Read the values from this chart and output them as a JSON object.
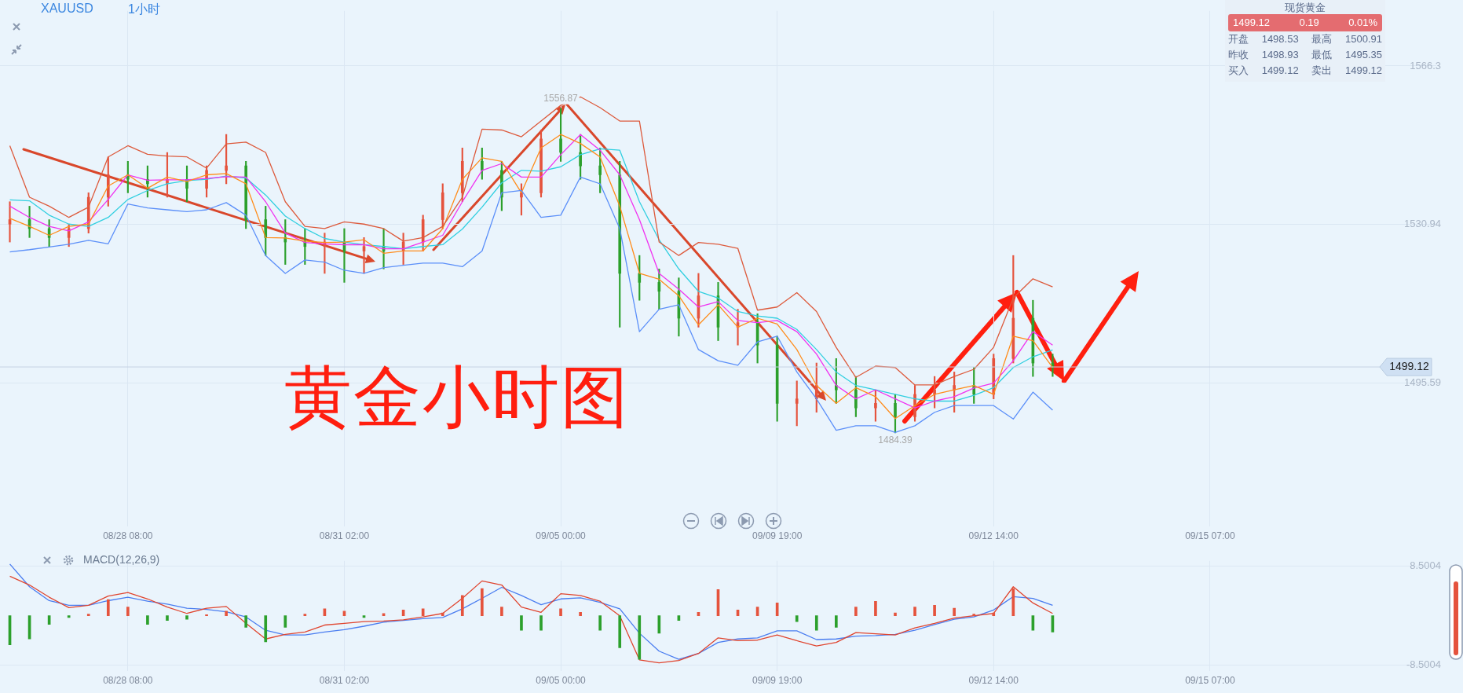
{
  "chart_data": [
    {
      "type": "candlestick",
      "title": "XAUUSD",
      "subtitle": "1小时",
      "categories": [
        null,
        null,
        null,
        null,
        null,
        null,
        "08/28 08:00",
        null,
        null,
        null,
        null,
        null,
        null,
        null,
        null,
        null,
        null,
        "08/31 02:00",
        null,
        null,
        null,
        null,
        null,
        null,
        null,
        null,
        null,
        null,
        "09/05 00:00",
        null,
        null,
        null,
        null,
        null,
        null,
        null,
        null,
        null,
        null,
        "09/09 19:00",
        null,
        null,
        null,
        null,
        null,
        null,
        null,
        null,
        null,
        null,
        "09/12 14:00",
        null,
        null,
        null,
        null,
        null,
        null,
        null,
        null,
        null,
        null,
        "09/15 07:00",
        null,
        null,
        null,
        null,
        null,
        null,
        null,
        null,
        null,
        null,
        null
      ],
      "ohlc": [
        [
          1531,
          1536,
          1527,
          1532
        ],
        [
          1532,
          1535,
          1528,
          1530
        ],
        [
          1530,
          1532,
          1526,
          1528
        ],
        [
          1528,
          1531,
          1526,
          1530
        ],
        [
          1530,
          1538,
          1529,
          1537
        ],
        [
          1537,
          1546,
          1535,
          1542
        ],
        [
          1542,
          1545,
          1538,
          1541
        ],
        [
          1541,
          1544,
          1537,
          1540
        ],
        [
          1540,
          1547,
          1537,
          1541
        ],
        [
          1541,
          1544,
          1536,
          1539
        ],
        [
          1539,
          1544,
          1537,
          1543
        ],
        [
          1543,
          1551,
          1540,
          1544
        ],
        [
          1544,
          1545,
          1530,
          1532
        ],
        [
          1532,
          1535,
          1524,
          1528
        ],
        [
          1528,
          1532,
          1522,
          1527
        ],
        [
          1527,
          1530,
          1522,
          1526
        ],
        [
          1526,
          1529,
          1520,
          1527
        ],
        [
          1527,
          1530,
          1518,
          1525
        ],
        [
          1525,
          1528,
          1520,
          1526
        ],
        [
          1526,
          1530,
          1521,
          1525
        ],
        [
          1525,
          1529,
          1522,
          1527
        ],
        [
          1527,
          1533,
          1525,
          1532
        ],
        [
          1532,
          1540,
          1530,
          1538
        ],
        [
          1538,
          1548,
          1536,
          1545
        ],
        [
          1545,
          1548,
          1541,
          1543
        ],
        [
          1543,
          1545,
          1534,
          1537
        ],
        [
          1537,
          1540,
          1533,
          1538
        ],
        [
          1538,
          1552,
          1537,
          1550
        ],
        [
          1550,
          1556.87,
          1545,
          1547
        ],
        [
          1547,
          1551,
          1541,
          1544
        ],
        [
          1544,
          1548,
          1538,
          1542
        ],
        [
          1542,
          1545,
          1508,
          1520
        ],
        [
          1520,
          1524,
          1514,
          1518
        ],
        [
          1518,
          1521,
          1512,
          1516
        ],
        [
          1516,
          1519,
          1506,
          1510
        ],
        [
          1510,
          1520,
          1508,
          1515
        ],
        [
          1515,
          1518,
          1505,
          1508
        ],
        [
          1508,
          1512,
          1504,
          1509
        ],
        [
          1509,
          1511,
          1500,
          1504
        ],
        [
          1504,
          1506,
          1487,
          1491
        ],
        [
          1491,
          1496,
          1486,
          1492
        ],
        [
          1492,
          1500,
          1489,
          1495
        ],
        [
          1495,
          1501,
          1491,
          1494
        ],
        [
          1494,
          1497,
          1488,
          1490
        ],
        [
          1490,
          1494,
          1487,
          1491
        ],
        [
          1491,
          1493,
          1484.39,
          1488
        ],
        [
          1488,
          1495,
          1487,
          1493
        ],
        [
          1493,
          1497,
          1490,
          1494
        ],
        [
          1494,
          1498,
          1489,
          1495
        ],
        [
          1495,
          1499,
          1491,
          1493
        ],
        [
          1493,
          1502,
          1492,
          1501
        ],
        [
          1501,
          1524,
          1500,
          1510
        ],
        [
          1510,
          1514,
          1497,
          1500
        ],
        [
          1500,
          1502,
          1497,
          1499.12
        ],
        null,
        null,
        null,
        null,
        null,
        null,
        null,
        null,
        null,
        null,
        null,
        null,
        null,
        null,
        null,
        null,
        null,
        null,
        null
      ],
      "colors": [
        "#e5533d",
        "#2ca02c",
        "#2ca02c",
        "#e5533d",
        "#e5533d",
        "#e5533d",
        "#2ca02c",
        "#2ca02c",
        "#e5533d",
        "#2ca02c",
        "#e5533d",
        "#e5533d",
        "#2ca02c",
        "#2ca02c",
        "#2ca02c",
        "#2ca02c",
        "#e5533d",
        "#2ca02c",
        "#e5533d",
        "#2ca02c",
        "#e5533d",
        "#e5533d",
        "#e5533d",
        "#e5533d",
        "#2ca02c",
        "#2ca02c",
        "#e5533d",
        "#e5533d",
        "#2ca02c",
        "#2ca02c",
        "#2ca02c",
        "#2ca02c",
        "#2ca02c",
        "#2ca02c",
        "#2ca02c",
        "#e5533d",
        "#2ca02c",
        "#e5533d",
        "#2ca02c",
        "#2ca02c",
        "#e5533d",
        "#e5533d",
        "#2ca02c",
        "#2ca02c",
        "#e5533d",
        "#2ca02c",
        "#e5533d",
        "#e5533d",
        "#e5533d",
        "#2ca02c",
        "#e5533d",
        "#e5533d",
        "#2ca02c",
        "#2ca02c",
        null,
        null,
        null,
        null,
        null,
        null,
        null,
        null,
        null,
        null,
        null,
        null,
        null,
        null,
        null,
        null,
        null,
        null,
        null
      ],
      "series": [
        {
          "type": "line",
          "color": "#dd5a3c",
          "values": [
            1548.5,
            1537,
            1535,
            1532.5,
            1534.8,
            1546,
            1548.5,
            1546.6,
            1546.2,
            1546,
            1543.5,
            1548.9,
            1549.3,
            1547,
            1536,
            1530.5,
            1530,
            1531.5,
            1531,
            1530,
            1527.2,
            1528,
            1530.5,
            1537,
            1552.2,
            1552,
            1550.5,
            1554,
            1557.5,
            1559.4,
            1557,
            1554,
            1554,
            1527,
            1524,
            1526.9,
            1526.5,
            1525.6,
            1511.8,
            1512.5,
            1515.7,
            1511.5,
            1503.5,
            1496.8,
            1499.3,
            1499,
            1495.1,
            1495.1,
            1497,
            1498.6,
            1503.5,
            1514.5,
            1518.8,
            1517,
            null,
            null,
            null,
            null,
            null,
            null,
            null,
            null,
            null,
            null,
            null,
            null,
            null,
            null,
            null,
            null,
            null,
            null,
            null
          ]
        },
        {
          "type": "line",
          "color": "#5b8ff9",
          "values": [
            1524.8,
            1525.3,
            1525.9,
            1526.5,
            1527.4,
            1526.6,
            1535.5,
            1534.6,
            1534.2,
            1533.8,
            1534.2,
            1535.8,
            1533,
            1524,
            1520,
            1523,
            1522.5,
            1520.7,
            1520,
            1521.3,
            1521.8,
            1522.3,
            1522.3,
            1521.5,
            1525,
            1538,
            1538.5,
            1532.5,
            1533,
            1541.5,
            1540,
            1530,
            1507,
            1512,
            1513,
            1503,
            1500.5,
            1499.5,
            1504.7,
            1506,
            1498,
            1492,
            1485,
            1486,
            1486,
            1484.5,
            1486,
            1489,
            1490.5,
            1490.5,
            1490.5,
            1487.5,
            1493.5,
            1489.5,
            null,
            null,
            null,
            null,
            null,
            null,
            null,
            null,
            null,
            null,
            null,
            null,
            null,
            null,
            null,
            null,
            null,
            null,
            null
          ]
        },
        {
          "type": "line",
          "color": "#ff8c1a",
          "values": [
            1532.3,
            1530.5,
            1528.5,
            1530.5,
            1531,
            1539.5,
            1542,
            1539,
            1541.5,
            1540.5,
            1542,
            1542.3,
            1540,
            1528,
            1527.9,
            1527.2,
            1526.9,
            1527,
            1527.5,
            1524.5,
            1525,
            1525,
            1530,
            1541,
            1545.8,
            1545,
            1538,
            1548,
            1551,
            1549,
            1546,
            1535,
            1520,
            1518.7,
            1515,
            1508.5,
            1513,
            1508,
            1510,
            1508.7,
            1503,
            1495,
            1491,
            1494.5,
            1492.5,
            1487.6,
            1490.5,
            1493,
            1494,
            1495,
            1493,
            1506,
            1505,
            1499,
            null,
            null,
            null,
            null,
            null,
            null,
            null,
            null,
            null,
            null,
            null,
            null,
            null,
            null,
            null,
            null,
            null,
            null,
            null
          ]
        },
        {
          "type": "line",
          "color": "#f032f0",
          "values": [
            1535,
            1532.5,
            1530.5,
            1529.5,
            1531.5,
            1536.5,
            1542,
            1540.8,
            1540.9,
            1540.9,
            1541.2,
            1541.6,
            1541.5,
            1536,
            1529,
            1526.9,
            1526.6,
            1526.4,
            1526.4,
            1525.5,
            1525.5,
            1527,
            1528.5,
            1536,
            1543,
            1544.5,
            1541.5,
            1541.5,
            1546.5,
            1551,
            1547.5,
            1542,
            1532,
            1520,
            1516.5,
            1512.5,
            1513.7,
            1509.5,
            1509,
            1509.5,
            1507,
            1502,
            1495,
            1492,
            1494,
            1492,
            1490,
            1491.5,
            1492.5,
            1494.4,
            1495.5,
            1500.5,
            1507,
            1504,
            null,
            null,
            null,
            null,
            null,
            null,
            null,
            null,
            null,
            null,
            null,
            null,
            null,
            null,
            null,
            null,
            null,
            null,
            null
          ]
        },
        {
          "type": "line",
          "color": "#30cfe0",
          "values": [
            1536.4,
            1536.2,
            1533,
            1531,
            1530.5,
            1532.5,
            1536.5,
            1538.5,
            1540,
            1540.7,
            1541,
            1541.7,
            1541.3,
            1537.5,
            1532.8,
            1530,
            1527.8,
            1527,
            1526.4,
            1526,
            1525.5,
            1526,
            1526.4,
            1529.9,
            1534.8,
            1540.2,
            1543,
            1542.8,
            1543.8,
            1546.5,
            1547.8,
            1547.5,
            1536,
            1527.5,
            1521,
            1516,
            1514.5,
            1511.5,
            1510.5,
            1510,
            1507.5,
            1503,
            1498,
            1495,
            1494,
            1493,
            1492,
            1491.5,
            1491.5,
            1492.8,
            1494.5,
            1499,
            1501.4,
            1502.9,
            null,
            null,
            null,
            null,
            null,
            null,
            null,
            null,
            null,
            null,
            null,
            null,
            null,
            null,
            null,
            null,
            null,
            null,
            null
          ]
        }
      ],
      "ylim": [
        1463.6,
        1578.6
      ],
      "yticks": [
        1566.3,
        1530.94,
        1495.59
      ],
      "grid": true,
      "ref_lines": [
        {
          "axis": "y",
          "value": 1499.12,
          "label": "1499.12",
          "color": "#c5d3e3"
        }
      ],
      "annotations": [
        {
          "text": "1556.87",
          "y": 1556.87
        },
        {
          "text": "1484.39",
          "y": 1484.39
        },
        "黄金小时图",
        "现货黄金",
        "1499.12",
        "0.19",
        "0.01%",
        "开盘",
        "1498.53",
        "最高",
        "1500.91",
        "昨收",
        "1498.93",
        "最低",
        "1495.35",
        "买入",
        "1499.12",
        "卖出",
        "1499.12"
      ]
    },
    {
      "type": "bar",
      "title": "MACD(12,26,9)",
      "categories": [
        null,
        null,
        null,
        null,
        null,
        null,
        "08/28 08:00",
        null,
        null,
        null,
        null,
        null,
        null,
        null,
        null,
        null,
        null,
        "08/31 02:00",
        null,
        null,
        null,
        null,
        null,
        null,
        null,
        null,
        null,
        null,
        "09/05 00:00",
        null,
        null,
        null,
        null,
        null,
        null,
        null,
        null,
        null,
        null,
        "09/09 19:00",
        null,
        null,
        null,
        null,
        null,
        null,
        null,
        null,
        null,
        null,
        "09/12 14:00",
        null,
        null,
        null,
        null,
        null,
        null,
        null,
        null,
        null,
        null,
        "09/15 07:00",
        null,
        null,
        null,
        null,
        null,
        null,
        null,
        null,
        null,
        null,
        null
      ],
      "values": [
        -5.0,
        -4.0,
        -1.5,
        -0.3,
        0.3,
        2.8,
        1.5,
        -1.5,
        -0.8,
        -0.6,
        0.2,
        0.8,
        -2.0,
        -4.5,
        -2.0,
        0.3,
        1.2,
        0.8,
        -0.3,
        0.4,
        1.0,
        1.2,
        0.5,
        3.5,
        4.7,
        1.5,
        -2.5,
        -2.5,
        1.2,
        0.6,
        -2.5,
        -5.5,
        -7.5,
        -3.0,
        -0.8,
        0.6,
        4.5,
        1.0,
        1.5,
        2.2,
        -1.0,
        -2.5,
        -2.0,
        1.5,
        2.5,
        0.5,
        1.5,
        1.8,
        1.3,
        0.3,
        0.5,
        4.7,
        -2.5,
        -2.8,
        null,
        null,
        null,
        null,
        null,
        null,
        null,
        null,
        null,
        null,
        null,
        null,
        null,
        null,
        null,
        null,
        null,
        null,
        null
      ],
      "colors": [
        "#2ca02c",
        "#2ca02c",
        "#2ca02c",
        "#2ca02c",
        "#e5533d",
        "#e5533d",
        "#e5533d",
        "#2ca02c",
        "#2ca02c",
        "#2ca02c",
        "#e5533d",
        "#e5533d",
        "#2ca02c",
        "#2ca02c",
        "#2ca02c",
        "#e5533d",
        "#e5533d",
        "#e5533d",
        "#2ca02c",
        "#e5533d",
        "#e5533d",
        "#e5533d",
        "#e5533d",
        "#e5533d",
        "#e5533d",
        "#e5533d",
        "#2ca02c",
        "#2ca02c",
        "#e5533d",
        "#e5533d",
        "#2ca02c",
        "#2ca02c",
        "#2ca02c",
        "#2ca02c",
        "#2ca02c",
        "#e5533d",
        "#e5533d",
        "#e5533d",
        "#e5533d",
        "#e5533d",
        "#2ca02c",
        "#2ca02c",
        "#2ca02c",
        "#e5533d",
        "#e5533d",
        "#e5533d",
        "#e5533d",
        "#e5533d",
        "#e5533d",
        "#e5533d",
        "#e5533d",
        "#e5533d",
        "#2ca02c",
        "#2ca02c",
        null,
        null,
        null,
        null,
        null,
        null,
        null,
        null,
        null,
        null,
        null,
        null,
        null,
        null,
        null,
        null,
        null,
        null,
        null
      ],
      "series": [
        {
          "type": "line",
          "color": "#e0452f",
          "values": [
            6.8,
            5.3,
            3.2,
            1.4,
            1.8,
            3.4,
            4.0,
            2.9,
            1.5,
            0.4,
            1.3,
            1.6,
            -1.3,
            -4.0,
            -3.2,
            -2.8,
            -1.6,
            -1.3,
            -1.0,
            -0.9,
            -0.7,
            -0.2,
            0.4,
            3.0,
            6.0,
            5.3,
            1.5,
            0.6,
            3.8,
            3.5,
            2.5,
            0,
            -7.6,
            -8.1,
            -7.7,
            -6.5,
            -3.8,
            -4.3,
            -4.2,
            -3.3,
            -4.3,
            -5.2,
            -4.6,
            -2.9,
            -3.1,
            -3.3,
            -2.1,
            -1.3,
            -0.4,
            0,
            0.4,
            5.0,
            2.2,
            0.4,
            null,
            null,
            null,
            null,
            null,
            null,
            null,
            null,
            null,
            null,
            null,
            null,
            null,
            null,
            null,
            null,
            null,
            null,
            null
          ]
        },
        {
          "type": "line",
          "color": "#4a7df0",
          "values": [
            8.9,
            5.0,
            2.6,
            1.8,
            1.8,
            2.6,
            3.2,
            2.5,
            2.0,
            1.3,
            1.1,
            0.7,
            -0.2,
            -2.5,
            -3.3,
            -3.3,
            -2.8,
            -2.4,
            -1.8,
            -1.1,
            -0.8,
            -0.5,
            -0.3,
            1.2,
            3.0,
            4.9,
            3.5,
            1.9,
            2.9,
            3.1,
            2.3,
            1.2,
            -3.0,
            -6.1,
            -7.5,
            -6.5,
            -4.6,
            -4.0,
            -3.8,
            -2.6,
            -2.6,
            -4.1,
            -4.0,
            -3.5,
            -3.4,
            -3.2,
            -2.5,
            -1.5,
            -0.6,
            -0.2,
            1.0,
            3.3,
            3.0,
            1.8,
            null,
            null,
            null,
            null,
            null,
            null,
            null,
            null,
            null,
            null,
            null,
            null,
            null,
            null,
            null,
            null,
            null,
            null,
            null
          ]
        }
      ],
      "ylim": [
        -9.46,
        9.46
      ],
      "yticks": [
        8.5004,
        -8.5004
      ],
      "grid": true
    }
  ]
}
